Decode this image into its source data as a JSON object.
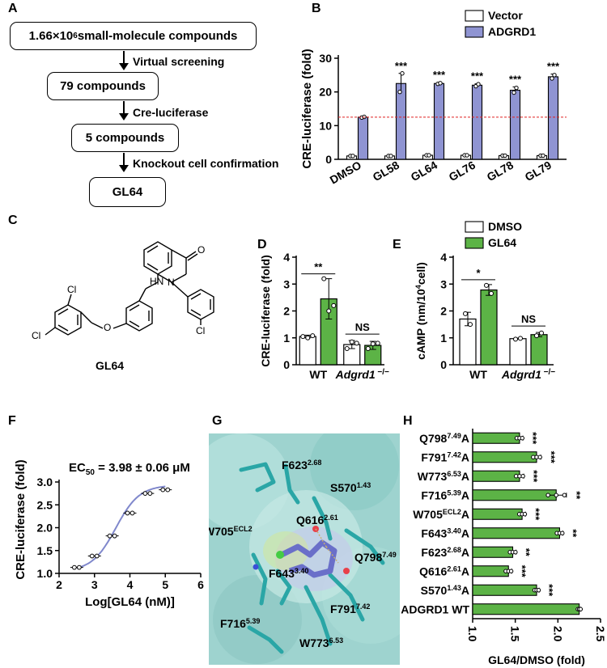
{
  "panels": {
    "a": "A",
    "b": "B",
    "c": "C",
    "d": "D",
    "e": "E",
    "f": "F",
    "g": "G",
    "h": "H"
  },
  "flow": {
    "box1_pre": "1.66",
    "box1_times": "×",
    "box1_ten": "10",
    "box1_exp": "6",
    "box1_post": " small-molecule compounds",
    "step1": "Virtual screening",
    "box2": "79 compounds",
    "step2": "Cre-luciferase",
    "box3": "5 compounds",
    "step3": "Knockout cell confirmation",
    "box4": "GL64"
  },
  "molecule": {
    "name": "GL64",
    "atoms": {
      "cl1": "Cl",
      "cl2": "Cl",
      "cl3": "Cl",
      "o_ether": "O",
      "o_carbonyl": "O",
      "hn": "HN",
      "n": "N"
    }
  },
  "docking": {
    "residues": [
      {
        "res": "F623",
        "pos": "2.68"
      },
      {
        "res": "S570",
        "pos": "1.43"
      },
      {
        "res": "Q616",
        "pos": "2.61"
      },
      {
        "res": "W705",
        "pos": "ECL2"
      },
      {
        "res": "Q798",
        "pos": "7.49"
      },
      {
        "res": "F643",
        "pos": "3.40"
      },
      {
        "res": "F716",
        "pos": "5.39"
      },
      {
        "res": "F791",
        "pos": "7.42"
      },
      {
        "res": "W773",
        "pos": "6.53"
      }
    ],
    "colors": {
      "bg": "#9ed3cf",
      "carbon": "#2aa6a6",
      "ligand": "#6a6fc9",
      "oxygen": "#e8404a",
      "nitrogen": "#3b4fd8",
      "chlorine": "#44cc44"
    }
  },
  "chart_data": [
    {
      "id": "B",
      "type": "bar",
      "ylabel": "CRE-luciferase (fold)",
      "ylim": [
        0,
        30
      ],
      "yticks": [
        0,
        10,
        20,
        30
      ],
      "categories": [
        "DMSO",
        "GL58",
        "GL64",
        "GL76",
        "GL78",
        "GL79"
      ],
      "series": [
        {
          "name": "Vector",
          "color": "#ffffff",
          "values": [
            1.0,
            1.0,
            1.2,
            1.2,
            1.1,
            1.1
          ],
          "errors": [
            0.2,
            0.2,
            0.2,
            0.2,
            0.2,
            0.2
          ],
          "points": [
            [
              1.0,
              1.0
            ],
            [
              1.0,
              1.0
            ],
            [
              1.2,
              1.2
            ],
            [
              1.2,
              1.2
            ],
            [
              1.1,
              1.1
            ],
            [
              1.1,
              1.1
            ]
          ]
        },
        {
          "name": "ADGRD1",
          "color": "#8f94d2",
          "values": [
            12.5,
            22.5,
            22.5,
            22.0,
            20.5,
            24.5
          ],
          "errors": [
            0.3,
            3.0,
            0.3,
            0.4,
            1.0,
            0.8
          ],
          "points": [
            [
              12.4,
              12.6
            ],
            [
              20.0,
              25.5
            ],
            [
              22.4,
              22.6
            ],
            [
              21.7,
              22.3
            ],
            [
              19.8,
              21.2
            ],
            [
              24.0,
              25.0
            ]
          ]
        }
      ],
      "annotations": [
        "",
        "***",
        "***",
        "***",
        "***",
        "***"
      ],
      "reference_line": 12.5,
      "legend": "top-right"
    },
    {
      "id": "D",
      "type": "bar",
      "ylabel": "CRE-luciferase (fold)",
      "ylim": [
        0,
        4
      ],
      "yticks": [
        0,
        1,
        2,
        3,
        4
      ],
      "groups": [
        "WT",
        "Adgrd1"
      ],
      "group_suffix": [
        "",
        " −/−"
      ],
      "series": [
        {
          "name": "DMSO",
          "color": "#ffffff",
          "values": [
            1.05,
            0.75
          ],
          "errors": [
            0.05,
            0.15
          ],
          "points": [
            [
              1.05,
              1.0,
              1.08
            ],
            [
              0.6,
              0.85,
              0.8
            ]
          ]
        },
        {
          "name": "GL64",
          "color": "#5cb346",
          "values": [
            2.45,
            0.72
          ],
          "errors": [
            0.75,
            0.15
          ],
          "points": [
            [
              3.2,
              2.0,
              2.2
            ],
            [
              0.6,
              0.78,
              0.8
            ]
          ]
        }
      ],
      "significance": [
        "**",
        "NS"
      ],
      "legend": "top-right"
    },
    {
      "id": "E",
      "type": "bar",
      "ylabel": "cAMP (nm/10",
      "ylabel_sup": "4",
      "ylabel_tail": "cell)",
      "ylim": [
        0,
        4
      ],
      "yticks": [
        0,
        1,
        2,
        3,
        4
      ],
      "groups": [
        "WT",
        "Adgrd1"
      ],
      "group_suffix": [
        "",
        " −/−"
      ],
      "series": [
        {
          "name": "DMSO",
          "color": "#ffffff",
          "values": [
            1.7,
            0.97
          ],
          "errors": [
            0.25,
            0.02
          ],
          "points": [
            [
              1.9,
              1.5
            ],
            [
              0.95,
              0.98
            ]
          ]
        },
        {
          "name": "GL64",
          "color": "#5cb346",
          "values": [
            2.78,
            1.12
          ],
          "errors": [
            0.2,
            0.08
          ],
          "points": [
            [
              2.95,
              2.65
            ],
            [
              1.08,
              1.18
            ]
          ]
        }
      ],
      "significance": [
        "*",
        "NS"
      ],
      "legend": "top-right"
    },
    {
      "id": "F",
      "type": "scatter",
      "title": "EC",
      "title_sub": "50",
      "title_tail": " = 3.98 ± 0.06 μM",
      "xlabel": "Log[GL64 (nM)]",
      "ylabel": "CRE-luciferase (fold)",
      "xlim": [
        2,
        6
      ],
      "ylim": [
        1.0,
        3.0
      ],
      "xticks": [
        2,
        3,
        4,
        5,
        6
      ],
      "yticks": [
        1.0,
        1.5,
        2.0,
        2.5,
        3.0
      ],
      "x": [
        2.5,
        3.0,
        3.5,
        4.0,
        4.5,
        5.0
      ],
      "y": [
        1.13,
        1.38,
        1.82,
        2.32,
        2.75,
        2.83
      ],
      "fit": {
        "bottom": 1.05,
        "top": 2.93,
        "logEC50": 3.6,
        "hill": 1.3
      }
    },
    {
      "id": "H",
      "type": "bar",
      "orientation": "horizontal",
      "xlabel": "GL64/DMSO (fold)",
      "xlim": [
        1.0,
        2.5
      ],
      "xticks": [
        1.0,
        1.5,
        2.0,
        2.5
      ],
      "categories": [
        {
          "res": "Q798",
          "pos": "7.49",
          "tail": "A"
        },
        {
          "res": "F791",
          "pos": "7.42",
          "tail": "A"
        },
        {
          "res": "W773",
          "pos": "6.53",
          "tail": "A"
        },
        {
          "res": "F716",
          "pos": "5.39",
          "tail": "A"
        },
        {
          "res": "W705",
          "pos": "ECL2",
          "tail": "A"
        },
        {
          "res": "F643",
          "pos": "3.40",
          "tail": "A"
        },
        {
          "res": "F623",
          "pos": "2.68",
          "tail": "A"
        },
        {
          "res": "Q616",
          "pos": "2.61",
          "tail": "A"
        },
        {
          "res": "S570",
          "pos": "1.43",
          "tail": "A"
        },
        {
          "res": "ADGRD1 WT",
          "pos": "",
          "tail": ""
        }
      ],
      "values": [
        1.55,
        1.75,
        1.55,
        1.98,
        1.58,
        2.02,
        1.47,
        1.42,
        1.75,
        2.25
      ],
      "errors": [
        0.04,
        0.05,
        0.05,
        0.12,
        0.04,
        0.04,
        0.04,
        0.04,
        0.03,
        0.02
      ],
      "significance": [
        "***",
        "***",
        "***",
        "**",
        "***",
        "**",
        "**",
        "***",
        "***",
        ""
      ],
      "color": "#5cb346"
    }
  ]
}
